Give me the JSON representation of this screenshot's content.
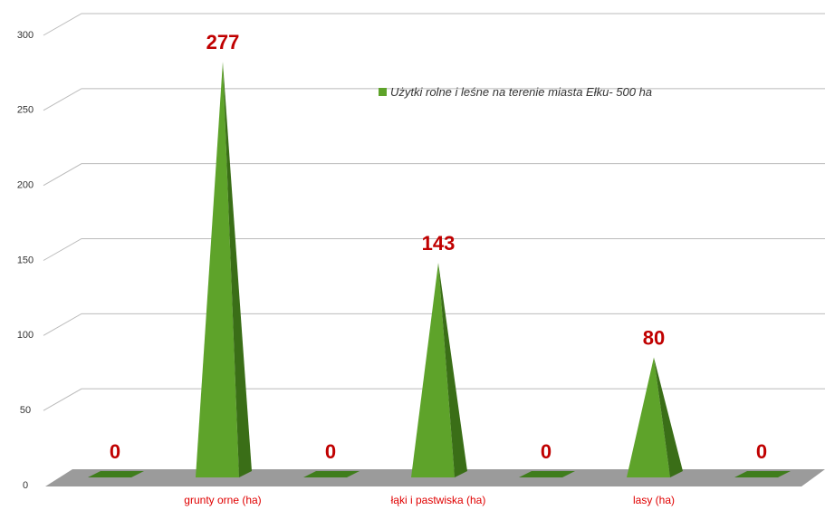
{
  "chart_data": {
    "type": "pyramid",
    "categories": [
      null,
      "grunty orne (ha)",
      null,
      "łąki i pastwiska (ha)",
      null,
      "lasy (ha)",
      null
    ],
    "series": [
      {
        "name": "Użytki rolne i leśne na terenie miasta Ełku- 500 ha",
        "color": "#5ea32a",
        "values": [
          0,
          277,
          0,
          143,
          0,
          80,
          0
        ]
      }
    ],
    "ylim": [
      0,
      300
    ],
    "yticks": [
      0,
      50,
      100,
      150,
      200,
      250,
      300
    ],
    "grid": true,
    "legend": "top-center"
  }
}
